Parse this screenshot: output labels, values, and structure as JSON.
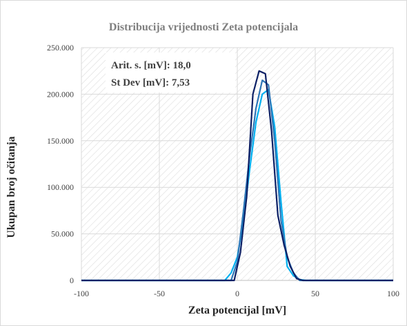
{
  "chart_data": {
    "type": "line",
    "title": "Distribucija  vrijednosti  Zeta potencijala",
    "xlabel": "Zeta potencijal  [mV]",
    "ylabel": "Ukupan broj očitanja",
    "xlim": [
      -100,
      100
    ],
    "ylim": [
      0,
      250000
    ],
    "xticks": [
      -100,
      -50,
      0,
      50,
      100
    ],
    "xtick_labels": [
      "-100",
      "-50",
      "0",
      "50",
      "100"
    ],
    "yticks": [
      0,
      50000,
      100000,
      150000,
      200000,
      250000
    ],
    "ytick_labels": [
      "0",
      "50.000",
      "100.000",
      "150.000",
      "200.000",
      "250.000"
    ],
    "grid": true,
    "annotations": [
      "Arit. s. [mV]: 18,0",
      "St Dev [mV]: 7,53"
    ],
    "series": [
      {
        "color": "#00b0f0",
        "x": [
          -100,
          -8,
          -4,
          0,
          4,
          8,
          12,
          16,
          20,
          24,
          28,
          32,
          36,
          40,
          44,
          100
        ],
        "y": [
          0,
          0,
          8000,
          25000,
          65000,
          120000,
          170000,
          200000,
          205000,
          165000,
          85000,
          15000,
          5000,
          1000,
          0,
          0
        ]
      },
      {
        "color": "#2e75b6",
        "x": [
          -100,
          -4,
          0,
          4,
          8,
          12,
          16,
          20,
          24,
          28,
          32,
          36,
          40,
          44,
          100
        ],
        "y": [
          0,
          0,
          20000,
          75000,
          135000,
          185000,
          215000,
          210000,
          150000,
          65000,
          25000,
          8000,
          0,
          0,
          0
        ]
      },
      {
        "color": "#0b1f65",
        "x": [
          -100,
          -2,
          2,
          6,
          10,
          14,
          18,
          22,
          26,
          30,
          34,
          38,
          42,
          100
        ],
        "y": [
          0,
          0,
          30000,
          90000,
          200000,
          225000,
          222000,
          160000,
          70000,
          38000,
          15000,
          2000,
          0,
          0
        ]
      }
    ]
  }
}
